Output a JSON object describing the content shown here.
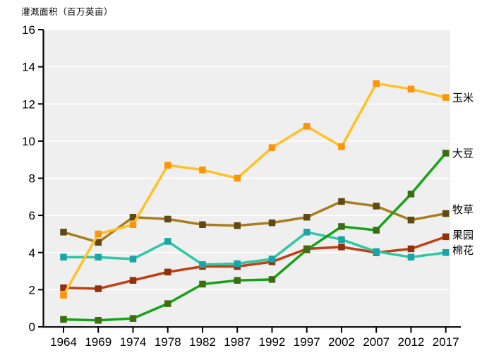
{
  "title": "灌溉面积（百万英亩）",
  "chart_data": {
    "type": "line",
    "title": "灌溉面积（百万英亩）",
    "xlabel": "",
    "ylabel": "灌溉面积（百万英亩）",
    "x_axis_type": "categorical",
    "categories": [
      "1964",
      "1969",
      "1974",
      "1978",
      "1982",
      "1987",
      "1992",
      "1997",
      "2002",
      "2007",
      "2012",
      "2017"
    ],
    "ylim": [
      0,
      16
    ],
    "y_ticks": [
      "0",
      "2",
      "4",
      "6",
      "8",
      "10",
      "12",
      "14",
      "16"
    ],
    "grid": "horizontal white gridlines on light gray plot background",
    "legend_position": "right-end-of-line labels",
    "plot_bg_color": "#efefef",
    "gridline_color": "#ffffff",
    "axis_color": "#000000",
    "series": [
      {
        "name": "玉米",
        "name_en": "corn",
        "line_color": "#ffc125",
        "marker_color": "#ff9408",
        "values": [
          1.7,
          5.0,
          5.5,
          8.7,
          8.45,
          8.0,
          9.65,
          10.8,
          9.7,
          13.1,
          12.8,
          12.35
        ]
      },
      {
        "name": "大豆",
        "name_en": "soybean",
        "line_color": "#15a315",
        "marker_color": "#3c6d10",
        "values": [
          0.4,
          0.35,
          0.45,
          1.25,
          2.3,
          2.5,
          2.55,
          4.15,
          5.4,
          5.2,
          7.15,
          9.35
        ]
      },
      {
        "name": "牧草",
        "name_en": "hay",
        "line_color": "#a87d1e",
        "marker_color": "#5e4a12",
        "values": [
          5.1,
          4.55,
          5.9,
          5.8,
          5.5,
          5.45,
          5.6,
          5.9,
          6.75,
          6.5,
          5.75,
          6.1
        ]
      },
      {
        "name": "果园",
        "name_en": "orchard",
        "line_color": "#c13e10",
        "marker_color": "#90300c",
        "values": [
          2.1,
          2.05,
          2.5,
          2.95,
          3.25,
          3.25,
          3.5,
          4.2,
          4.3,
          4.0,
          4.2,
          4.85
        ]
      },
      {
        "name": "棉花",
        "name_en": "cotton",
        "line_color": "#2fc7a4",
        "marker_color": "#1ba4a6",
        "values": [
          3.75,
          3.75,
          3.65,
          4.6,
          3.35,
          3.4,
          3.65,
          5.1,
          4.7,
          4.05,
          3.75,
          4.0
        ]
      }
    ],
    "draw_order": [
      "hay",
      "orchard",
      "cotton",
      "soybean",
      "corn"
    ]
  }
}
